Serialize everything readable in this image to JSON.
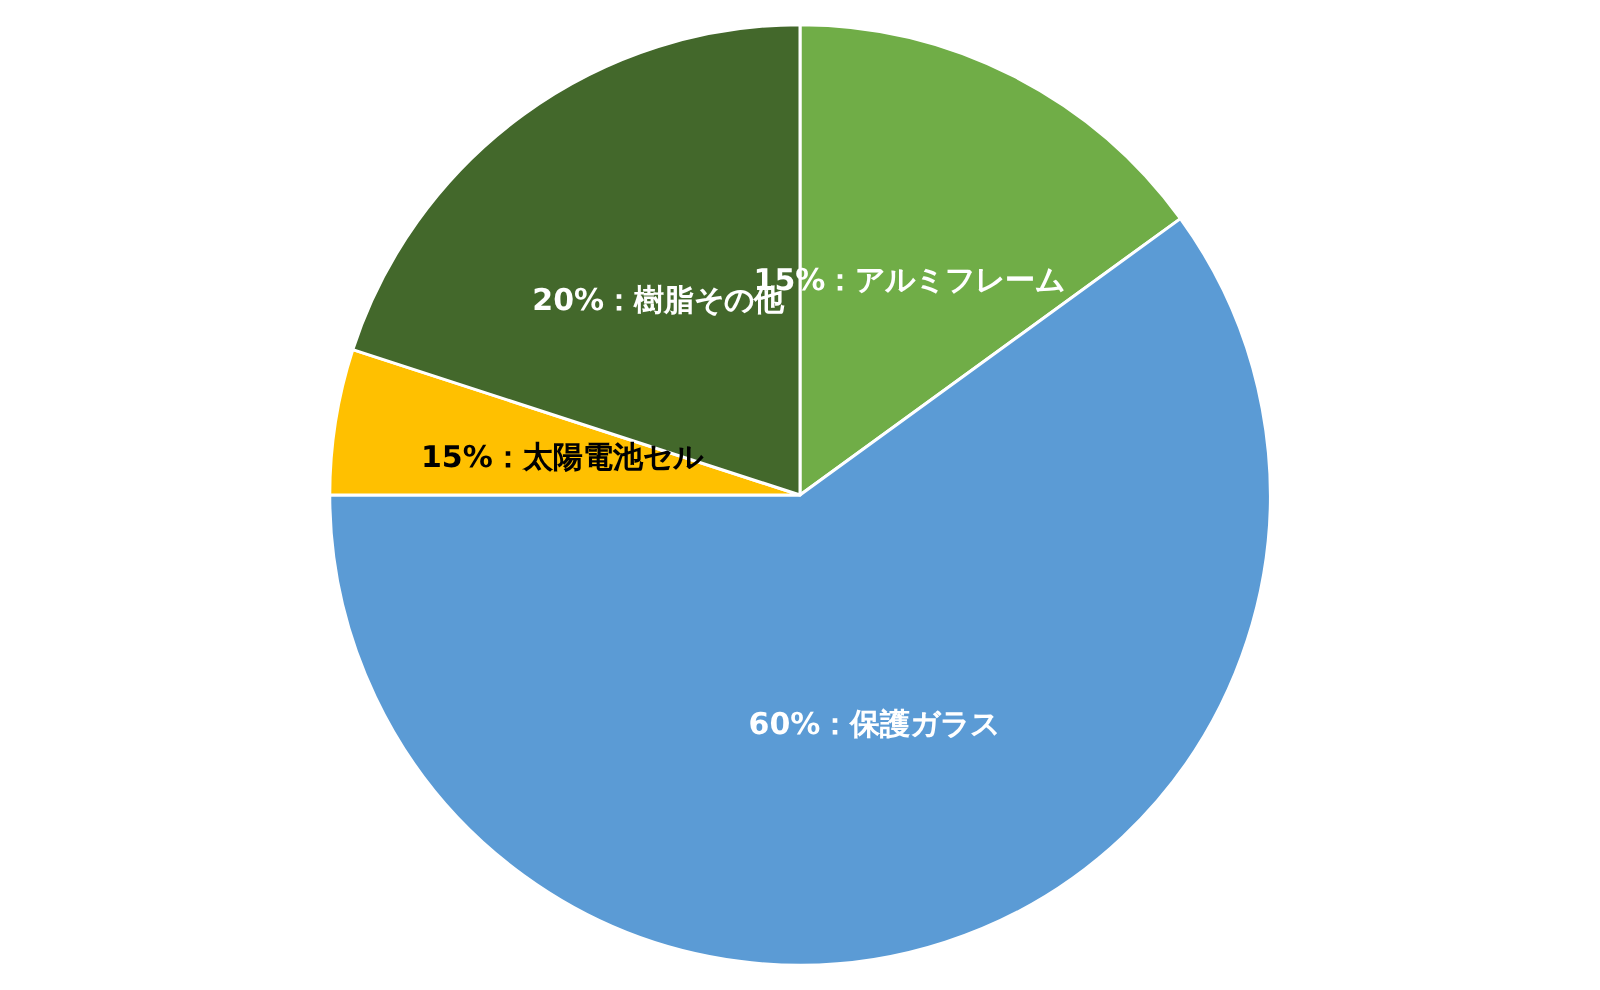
{
  "chart_data": {
    "type": "pie",
    "categories": [
      "15%：アルミフレーム",
      "60%：保護ガラス",
      "15%：太陽電池セル",
      "20%：樹脂その他"
    ],
    "values": [
      15,
      60,
      5,
      20
    ],
    "colors": [
      "#70ad47",
      "#5b9bd5",
      "#ffc000",
      "#43682b"
    ],
    "legend": false
  }
}
